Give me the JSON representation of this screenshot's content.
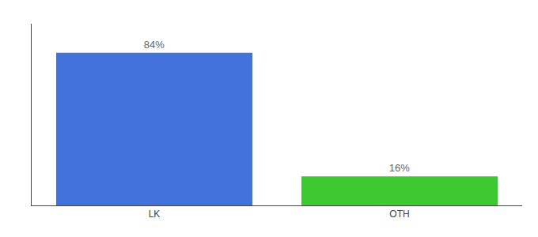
{
  "chart_data": {
    "type": "bar",
    "categories": [
      "LK",
      "OTH"
    ],
    "values": [
      84,
      16
    ],
    "value_labels": [
      "84%",
      "16%"
    ],
    "colors": [
      "#4472db",
      "#3ec832"
    ],
    "ylim": [
      0,
      100
    ],
    "data_labels": true,
    "grid": false,
    "tick_labels": "x"
  }
}
